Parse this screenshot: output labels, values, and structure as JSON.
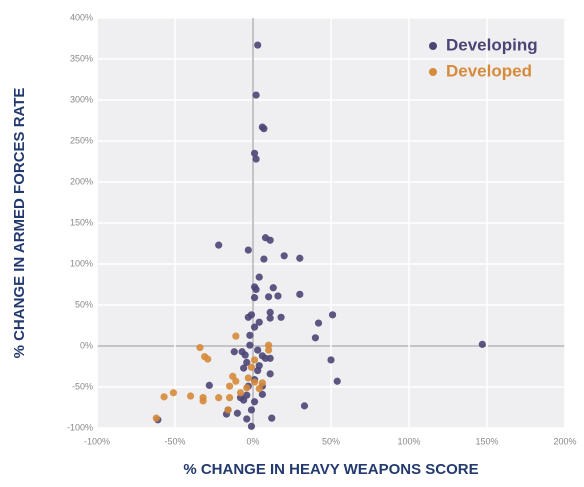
{
  "chart_data": {
    "type": "scatter",
    "x_label": "% CHANGE IN HEAVY WEAPONS SCORE",
    "y_label": "% CHANGE IN ARMED FORCES RATE",
    "xlim": [
      -100,
      200
    ],
    "ylim": [
      -100,
      400
    ],
    "xticks": [
      {
        "value": -100,
        "label": "-100%"
      },
      {
        "value": -50,
        "label": "-50%"
      },
      {
        "value": 0,
        "label": "0%"
      },
      {
        "value": 50,
        "label": "50%"
      },
      {
        "value": 100,
        "label": "100%"
      },
      {
        "value": 150,
        "label": "150%"
      },
      {
        "value": 200,
        "label": "200%"
      }
    ],
    "yticks": [
      {
        "value": -100,
        "label": "-100%"
      },
      {
        "value": -50,
        "label": "-50%"
      },
      {
        "value": 0,
        "label": "0%"
      },
      {
        "value": 50,
        "label": "50%"
      },
      {
        "value": 100,
        "label": "100%"
      },
      {
        "value": 150,
        "label": "150%"
      },
      {
        "value": 200,
        "label": "200%"
      },
      {
        "value": 250,
        "label": "250%"
      },
      {
        "value": 300,
        "label": "300%"
      },
      {
        "value": 350,
        "label": "350%"
      },
      {
        "value": 400,
        "label": "400%"
      }
    ],
    "grid": true,
    "legend": "upper right",
    "series": [
      {
        "name": "Developing",
        "color": "#4b4575",
        "x": [
          3,
          2,
          6,
          7,
          1,
          2,
          -22,
          -3,
          8,
          11,
          7,
          20,
          30,
          4,
          1,
          2,
          13,
          10,
          16,
          30,
          1,
          -3,
          -1,
          11,
          11,
          18,
          42,
          51,
          40,
          147,
          1,
          4,
          -2,
          -12,
          -7,
          -5,
          -4,
          -6,
          -2,
          3,
          6,
          8,
          11,
          50,
          54,
          11,
          4,
          3,
          1,
          6,
          6,
          -3,
          -4,
          -6,
          1,
          -1,
          -1,
          -4,
          -16,
          -10,
          -17,
          -28,
          12,
          33,
          -61,
          -8
        ],
        "values": [
          367,
          306,
          267,
          265,
          235,
          228,
          123,
          117,
          132,
          129,
          106,
          110,
          107,
          84,
          72,
          69,
          71,
          60,
          61,
          63,
          59,
          35,
          38,
          41,
          34,
          35,
          28,
          38,
          10,
          2,
          23,
          29,
          13,
          -7,
          -7,
          -11,
          -20,
          -27,
          1,
          -5,
          -12,
          -15,
          -15,
          -17,
          -43,
          -34,
          -24,
          -30,
          -41,
          -49,
          -59,
          -49,
          -60,
          -66,
          -68,
          -78,
          -98,
          -89,
          -78,
          -82,
          -83,
          -48,
          -88,
          -73,
          -90,
          -63
        ]
      },
      {
        "name": "Developed",
        "color": "#d68a3a",
        "x": [
          -11,
          -34,
          -31,
          -29,
          10,
          10,
          1,
          -1,
          -13,
          -11,
          -3,
          1,
          6,
          4,
          -4,
          -15,
          -8,
          -15,
          -22,
          -32,
          -32,
          -40,
          -51,
          -57,
          -16,
          -62
        ],
        "values": [
          12,
          -2,
          -13,
          -16,
          1,
          -5,
          -17,
          -26,
          -37,
          -43,
          -39,
          -44,
          -45,
          -52,
          -51,
          -49,
          -57,
          -63,
          -63,
          -63,
          -67,
          -61,
          -57,
          -62,
          -78,
          -88
        ]
      }
    ]
  }
}
